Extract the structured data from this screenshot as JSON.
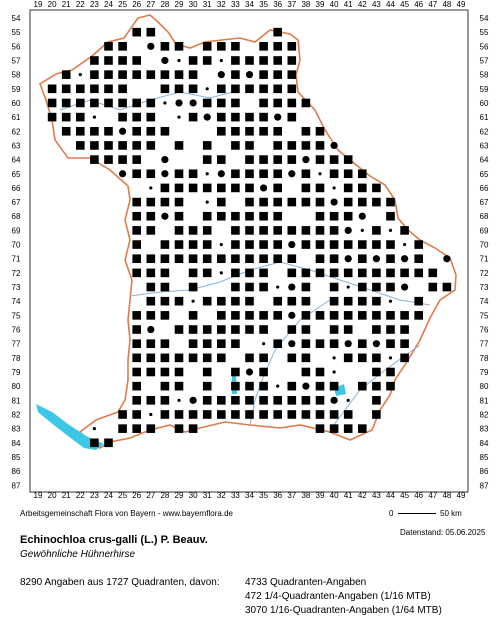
{
  "map": {
    "x_labels": [
      "19",
      "20",
      "21",
      "22",
      "23",
      "24",
      "25",
      "26",
      "27",
      "28",
      "29",
      "30",
      "31",
      "32",
      "33",
      "34",
      "35",
      "36",
      "37",
      "38",
      "39",
      "40",
      "41",
      "42",
      "43",
      "44",
      "45",
      "46",
      "47",
      "48",
      "49"
    ],
    "y_labels": [
      "54",
      "55",
      "56",
      "57",
      "58",
      "59",
      "60",
      "61",
      "62",
      "63",
      "64",
      "65",
      "66",
      "67",
      "68",
      "69",
      "70",
      "71",
      "72",
      "73",
      "74",
      "75",
      "76",
      "77",
      "78",
      "79",
      "80",
      "81",
      "82",
      "83",
      "84",
      "85",
      "86",
      "87"
    ],
    "colors": {
      "border": "#e07b4a",
      "water": "#3cc7e6",
      "river": "#8ab4d8",
      "marker": "#000000"
    },
    "legend_markers": [
      "filled-square",
      "filled-circle",
      "small-dot"
    ]
  },
  "footer": {
    "credit": "Arbeitsgemeinschaft Flora von Bayern - www.bayernflora.de",
    "scale_zero": "0",
    "scale_km": "50 km",
    "date": "Datenstand: 05.06.2025",
    "title": "Echinochloa crus-galli (L.) P. Beauv.",
    "subtitle": "Gewöhnliche Hühnerhirse",
    "summary": "8290 Angaben aus 1727 Quadranten, davon:",
    "stats": [
      "4733 Quadranten-Angaben",
      "472 1/4-Quadranten-Angaben (1/16 MTB)",
      "3070 1/16-Quadranten-Angaben (1/64 MTB)"
    ]
  }
}
